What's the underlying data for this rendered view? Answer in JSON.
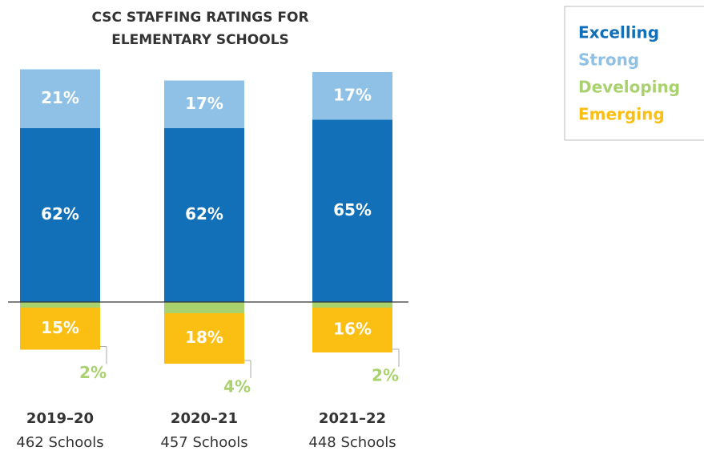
{
  "chart_data": {
    "type": "diverging_stacked_bar",
    "title": "CSC STAFFING RATINGS FOR ELEMENTARY SCHOOLS",
    "categories": [
      "2019–20",
      "2020–21",
      "2021–22"
    ],
    "school_counts": [
      "462 Schools",
      "457 Schools",
      "448 Schools"
    ],
    "series": [
      {
        "name": "Excelling",
        "color": "#1170b8",
        "values": [
          62,
          62,
          65
        ],
        "value_labels": [
          "62%",
          "62%",
          "65%"
        ]
      },
      {
        "name": "Strong",
        "color": "#8fc1e6",
        "values": [
          21,
          17,
          17
        ],
        "value_labels": [
          "21%",
          "17%",
          "17%"
        ]
      },
      {
        "name": "Developing",
        "color": "#a9d26e",
        "values": [
          2,
          4,
          2
        ],
        "value_labels": [
          "2%",
          "4%",
          "2%"
        ]
      },
      {
        "name": "Emerging",
        "color": "#fbbf14",
        "values": [
          15,
          18,
          16
        ],
        "value_labels": [
          "15%",
          "18%",
          "16%"
        ]
      }
    ]
  }
}
